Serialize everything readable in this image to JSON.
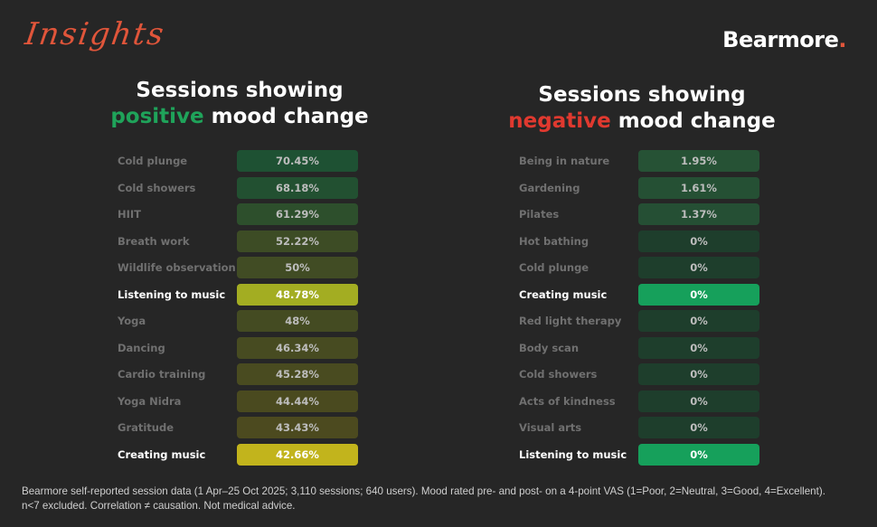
{
  "header": {
    "script_title": "Insights",
    "brand_name": "Bearmore",
    "brand_dot": "."
  },
  "colors": {
    "background": "#262626",
    "positive": "#1fa35a",
    "negative": "#e0392f",
    "accent": "#e0553a"
  },
  "chart_data": [
    {
      "type": "table",
      "title_part1": "Sessions showing",
      "title_keyword": "positive",
      "title_part2": "mood change",
      "rows": [
        {
          "label": "Cold plunge",
          "value": 70.45,
          "text": "70.45%",
          "highlight": false
        },
        {
          "label": "Cold showers",
          "value": 68.18,
          "text": "68.18%",
          "highlight": false
        },
        {
          "label": "HIIT",
          "value": 61.29,
          "text": "61.29%",
          "highlight": false
        },
        {
          "label": "Breath work",
          "value": 52.22,
          "text": "52.22%",
          "highlight": false
        },
        {
          "label": "Wildlife observation",
          "value": 50,
          "text": "50%",
          "highlight": false
        },
        {
          "label": "Listening to music",
          "value": 48.78,
          "text": "48.78%",
          "highlight": true
        },
        {
          "label": "Yoga",
          "value": 48,
          "text": "48%",
          "highlight": false
        },
        {
          "label": "Dancing",
          "value": 46.34,
          "text": "46.34%",
          "highlight": false
        },
        {
          "label": "Cardio training",
          "value": 45.28,
          "text": "45.28%",
          "highlight": false
        },
        {
          "label": "Yoga Nidra",
          "value": 44.44,
          "text": "44.44%",
          "highlight": false
        },
        {
          "label": "Gratitude",
          "value": 43.43,
          "text": "43.43%",
          "highlight": false
        },
        {
          "label": "Creating music",
          "value": 42.66,
          "text": "42.66%",
          "highlight": true
        }
      ]
    },
    {
      "type": "table",
      "title_part1": "Sessions showing",
      "title_keyword": "negative",
      "title_part2": "mood change",
      "rows": [
        {
          "label": "Being in nature",
          "value": 1.95,
          "text": "1.95%",
          "highlight": false
        },
        {
          "label": "Gardening",
          "value": 1.61,
          "text": "1.61%",
          "highlight": false
        },
        {
          "label": "Pilates",
          "value": 1.37,
          "text": "1.37%",
          "highlight": false
        },
        {
          "label": "Hot bathing",
          "value": 0,
          "text": "0%",
          "highlight": false
        },
        {
          "label": "Cold plunge",
          "value": 0,
          "text": "0%",
          "highlight": false
        },
        {
          "label": "Creating music",
          "value": 0,
          "text": "0%",
          "highlight": true
        },
        {
          "label": "Red light therapy",
          "value": 0,
          "text": "0%",
          "highlight": false
        },
        {
          "label": "Body scan",
          "value": 0,
          "text": "0%",
          "highlight": false
        },
        {
          "label": "Cold showers",
          "value": 0,
          "text": "0%",
          "highlight": false
        },
        {
          "label": "Acts of kindness",
          "value": 0,
          "text": "0%",
          "highlight": false
        },
        {
          "label": "Visual arts",
          "value": 0,
          "text": "0%",
          "highlight": false
        },
        {
          "label": "Listening to music",
          "value": 0,
          "text": "0%",
          "highlight": true
        }
      ]
    }
  ],
  "footnote": {
    "line1": "Bearmore self-reported session data (1 Apr–25 Oct 2025; 3,110 sessions; 640 users). Mood rated pre- and post- on a 4-point VAS (1=Poor, 2=Neutral, 3=Good, 4=Excellent).",
    "line2": "n<7 excluded. Correlation ≠ causation. Not medical advice."
  }
}
